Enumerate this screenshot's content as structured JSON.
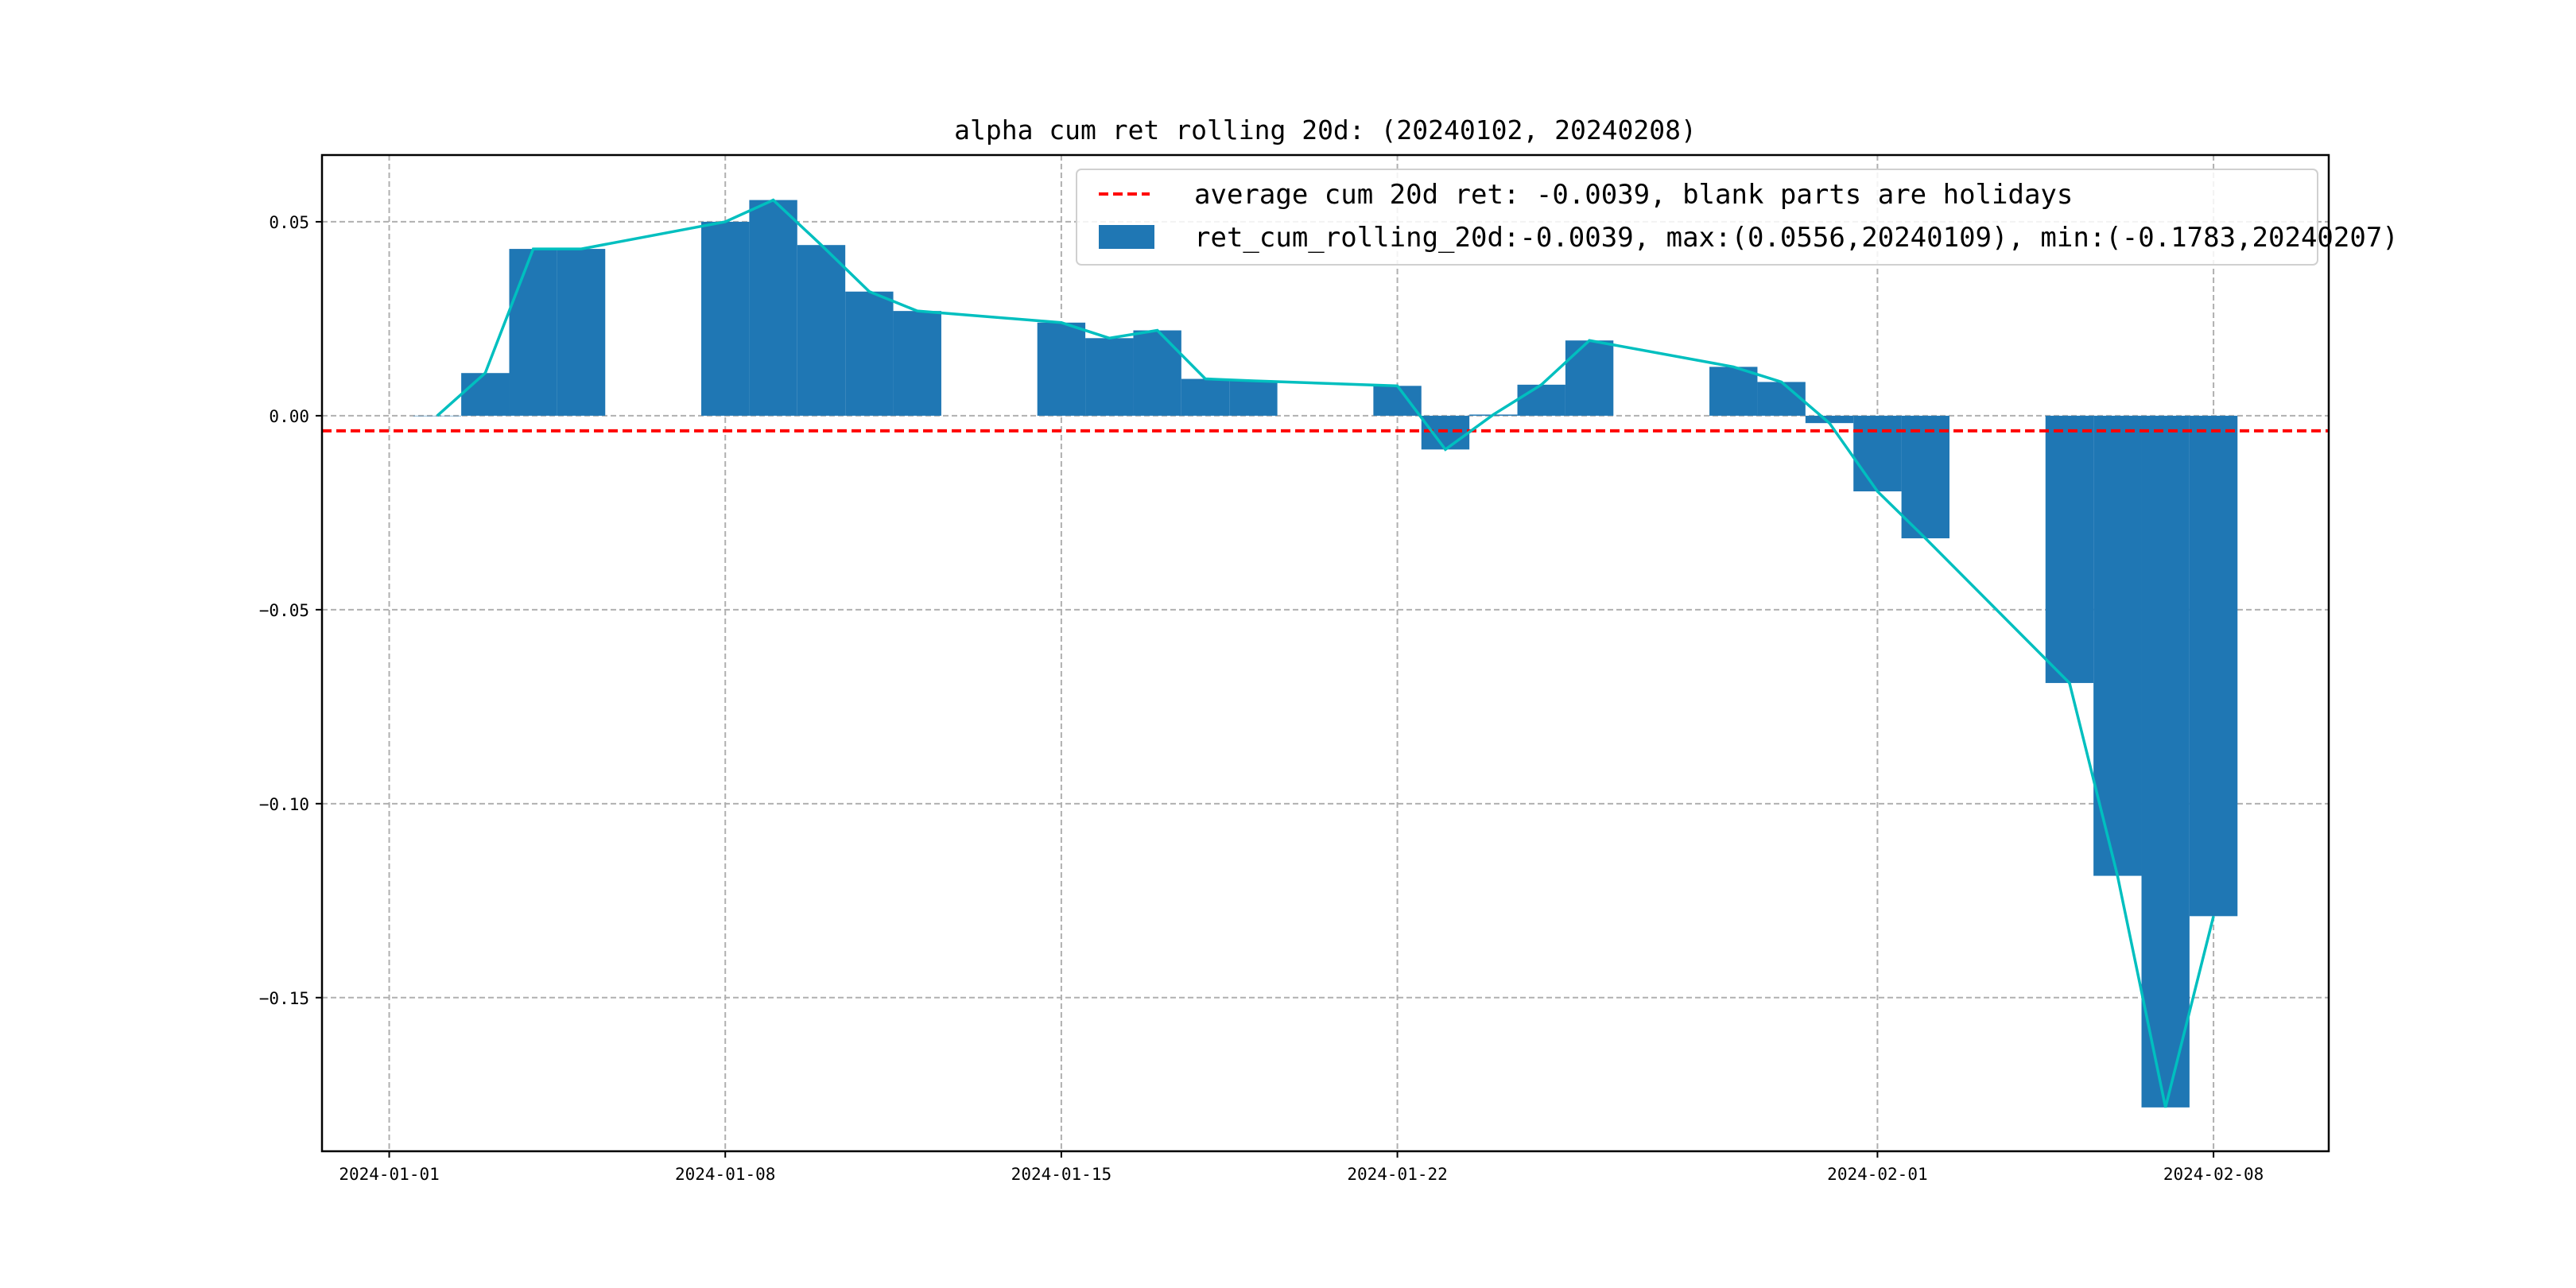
{
  "chart_data": {
    "type": "bar",
    "title": "alpha cum ret rolling 20d: (20240102, 20240208)",
    "xlabel": "",
    "ylabel": "",
    "base_date": "2024-01-01",
    "xlim_days_from_base": [
      -1.4,
      40.4
    ],
    "ylim": [
      -0.1896,
      0.0672
    ],
    "grid": true,
    "legend_placement": "top-right",
    "x_ticks": [
      {
        "label": "2024-01-01",
        "day": 0
      },
      {
        "label": "2024-01-08",
        "day": 7
      },
      {
        "label": "2024-01-15",
        "day": 14
      },
      {
        "label": "2024-01-22",
        "day": 21
      },
      {
        "label": "2024-02-01",
        "day": 31
      },
      {
        "label": "2024-02-08",
        "day": 38
      }
    ],
    "y_ticks": [
      {
        "label": "0.05",
        "value": 0.05
      },
      {
        "label": "0.00",
        "value": 0.0
      },
      {
        "label": "−0.05",
        "value": -0.05
      },
      {
        "label": "−0.10",
        "value": -0.1
      },
      {
        "label": "−0.15",
        "value": -0.15
      }
    ],
    "dates": [
      "2024-01-02",
      "2024-01-03",
      "2024-01-04",
      "2024-01-05",
      "2024-01-08",
      "2024-01-09",
      "2024-01-10",
      "2024-01-11",
      "2024-01-12",
      "2024-01-15",
      "2024-01-16",
      "2024-01-17",
      "2024-01-18",
      "2024-01-19",
      "2024-01-22",
      "2024-01-23",
      "2024-01-24",
      "2024-01-25",
      "2024-01-26",
      "2024-01-29",
      "2024-01-30",
      "2024-01-31",
      "2024-02-01",
      "2024-02-02",
      "2024-02-05",
      "2024-02-06",
      "2024-02-07",
      "2024-02-08"
    ],
    "days": [
      1,
      2,
      3,
      4,
      7,
      8,
      9,
      10,
      11,
      14,
      15,
      16,
      17,
      18,
      21,
      22,
      23,
      24,
      25,
      28,
      29,
      30,
      31,
      32,
      35,
      36,
      37,
      38
    ],
    "series": [
      {
        "name": "ret_cum_rolling_20d:-0.0039, max:(0.0556,20240109), min:(-0.1783,20240207)",
        "kind": "bar",
        "color": "#1f77b4",
        "values": [
          0.0,
          0.011,
          0.043,
          0.043,
          0.05,
          0.0556,
          0.044,
          0.032,
          0.027,
          0.024,
          0.02,
          0.022,
          0.0095,
          0.009,
          0.0077,
          -0.0087,
          0.0003,
          0.008,
          0.0194,
          0.0126,
          0.0087,
          -0.0019,
          -0.0195,
          -0.0316,
          -0.0689,
          -0.1186,
          -0.1783,
          -0.129
        ]
      },
      {
        "name": "line",
        "kind": "line",
        "color": "#00bfbf",
        "values": [
          0.0,
          0.011,
          0.043,
          0.043,
          0.05,
          0.0556,
          0.044,
          0.032,
          0.027,
          0.024,
          0.02,
          0.022,
          0.0095,
          0.009,
          0.0077,
          -0.0087,
          0.0003,
          0.008,
          0.0194,
          0.0126,
          0.0087,
          -0.0019,
          -0.0195,
          -0.0316,
          -0.0689,
          -0.1186,
          -0.1783,
          -0.129
        ]
      }
    ],
    "hline": {
      "value": -0.0039,
      "color": "#ff0000",
      "label": "average cum 20d ret: -0.0039, blank parts are holidays"
    },
    "legend": [
      "average cum 20d ret: -0.0039, blank parts are holidays",
      "ret_cum_rolling_20d:-0.0039, max:(0.0556,20240109), min:(-0.1783,20240207)"
    ]
  }
}
